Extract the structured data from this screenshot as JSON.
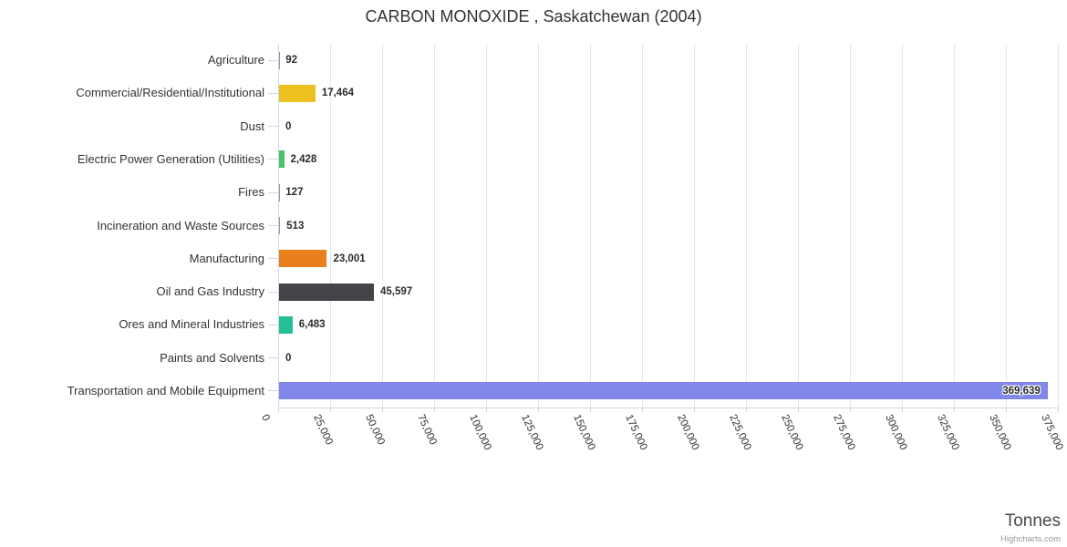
{
  "credits": "Highcharts.com",
  "chart_data": {
    "type": "bar",
    "orientation": "horizontal",
    "title": "CARBON MONOXIDE , Saskatchewan (2004)",
    "categories": [
      "Agriculture",
      "Commercial/Residential/Institutional",
      "Dust",
      "Electric Power Generation (Utilities)",
      "Fires",
      "Incineration and Waste Sources",
      "Manufacturing",
      "Oil and Gas Industry",
      "Ores and Mineral Industries",
      "Paints and Solvents",
      "Transportation and Mobile Equipment"
    ],
    "values": [
      92,
      17464,
      0,
      2428,
      127,
      513,
      23001,
      45597,
      6483,
      0,
      369639
    ],
    "value_labels": [
      "92",
      "17,464",
      "0",
      "2,428",
      "127",
      "513",
      "23,001",
      "45,597",
      "6,483",
      "0",
      "369,639"
    ],
    "bar_colors": [
      null,
      "#EDC220",
      null,
      "#4EC16C",
      null,
      null,
      "#E8801E",
      "#434348",
      "#24BE97",
      null,
      "#8087E8"
    ],
    "default_bar_color": "#999999",
    "inside_label_index": 10,
    "xlabel": "Tonnes",
    "xlim": [
      0,
      375000
    ],
    "x_tick_interval": 25000,
    "x_tick_labels": [
      "0",
      "25,000",
      "50,000",
      "75,000",
      "100,000",
      "125,000",
      "150,000",
      "175,000",
      "200,000",
      "225,000",
      "250,000",
      "275,000",
      "300,000",
      "325,000",
      "350,000",
      "375,000"
    ],
    "grid": true,
    "legend": false
  }
}
